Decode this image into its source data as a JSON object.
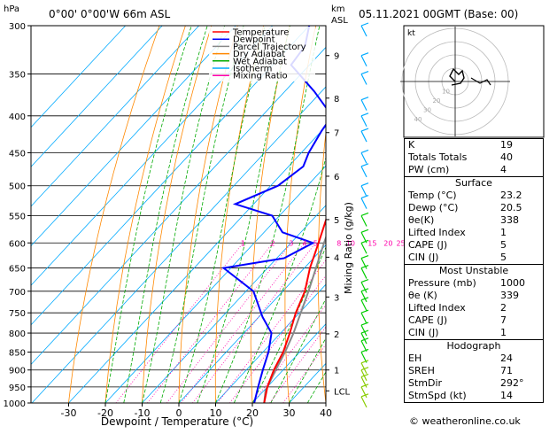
{
  "header": {
    "units_left": "hPa",
    "location": "0°00' 0°00'W 66m ASL",
    "units_km": "km",
    "units_asl": "ASL",
    "datetime": "05.11.2021 00GMT (Base: 00)"
  },
  "legend": [
    {
      "label": "Temperature",
      "color": "#ff0000"
    },
    {
      "label": "Dewpoint",
      "color": "#0000ff"
    },
    {
      "label": "Parcel Trajectory",
      "color": "#888888"
    },
    {
      "label": "Dry Adiabat",
      "color": "#ff8800"
    },
    {
      "label": "Wet Adiabat",
      "color": "#00aa00"
    },
    {
      "label": "Isotherm",
      "color": "#00aaff"
    },
    {
      "label": "Mixing Ratio",
      "color": "#ff00aa"
    }
  ],
  "chart_data": {
    "type": "skew-t",
    "xlabel": "Dewpoint / Temperature (°C)",
    "ylabel_right": "Mixing Ratio (g/kg)",
    "x_ticks": [
      "-30",
      "-20",
      "-10",
      "0",
      "10",
      "20",
      "30",
      "40"
    ],
    "pressure_ticks": [
      "300",
      "350",
      "400",
      "450",
      "500",
      "550",
      "600",
      "650",
      "700",
      "750",
      "800",
      "850",
      "900",
      "950",
      "1000"
    ],
    "km_ticks": [
      {
        "label": "9",
        "p": 330
      },
      {
        "label": "8",
        "p": 378
      },
      {
        "label": "7",
        "p": 422
      },
      {
        "label": "6",
        "p": 485
      },
      {
        "label": "5",
        "p": 557
      },
      {
        "label": "4",
        "p": 628
      },
      {
        "label": "3",
        "p": 713
      },
      {
        "label": "2",
        "p": 802
      },
      {
        "label": "1",
        "p": 900
      },
      {
        "label": "LCL",
        "p": 962
      }
    ],
    "mixing_ratio_labels": [
      "1",
      "2",
      "3",
      "4",
      "5",
      "8",
      "10",
      "15",
      "20",
      "25"
    ],
    "temperature": [
      {
        "p": 1000,
        "t": 23.2
      },
      {
        "p": 950,
        "t": 20.0
      },
      {
        "p": 900,
        "t": 17.5
      },
      {
        "p": 850,
        "t": 15.5
      },
      {
        "p": 800,
        "t": 12.5
      },
      {
        "p": 750,
        "t": 9.0
      },
      {
        "p": 700,
        "t": 6.0
      },
      {
        "p": 650,
        "t": 1.5
      },
      {
        "p": 600,
        "t": -2.5
      },
      {
        "p": 550,
        "t": -7.0
      },
      {
        "p": 500,
        "t": -12.0
      },
      {
        "p": 450,
        "t": -17.5
      },
      {
        "p": 400,
        "t": -24.0
      },
      {
        "p": 350,
        "t": -31.5
      },
      {
        "p": 300,
        "t": -40.0
      }
    ],
    "dewpoint": [
      {
        "p": 1000,
        "t": 20.5
      },
      {
        "p": 950,
        "t": 17.5
      },
      {
        "p": 900,
        "t": 14.5
      },
      {
        "p": 850,
        "t": 11.5
      },
      {
        "p": 800,
        "t": 7.5
      },
      {
        "p": 760,
        "t": 1.0
      },
      {
        "p": 700,
        "t": -8.0
      },
      {
        "p": 650,
        "t": -22.0
      },
      {
        "p": 630,
        "t": -8.0
      },
      {
        "p": 600,
        "t": -4.0
      },
      {
        "p": 580,
        "t": -15.0
      },
      {
        "p": 550,
        "t": -22.0
      },
      {
        "p": 530,
        "t": -35.0
      },
      {
        "p": 500,
        "t": -28.0
      },
      {
        "p": 470,
        "t": -26.0
      },
      {
        "p": 450,
        "t": -28.0
      },
      {
        "p": 420,
        "t": -30.0
      },
      {
        "p": 400,
        "t": -31.0
      },
      {
        "p": 370,
        "t": -42.0
      },
      {
        "p": 340,
        "t": -55.0
      },
      {
        "p": 320,
        "t": -56.0
      },
      {
        "p": 300,
        "t": -60.0
      }
    ],
    "parcel": [
      {
        "p": 1000,
        "t": 23.2
      },
      {
        "p": 962,
        "t": 20.5
      },
      {
        "p": 900,
        "t": 18.0
      },
      {
        "p": 850,
        "t": 16.0
      },
      {
        "p": 800,
        "t": 13.5
      },
      {
        "p": 700,
        "t": 7.0
      },
      {
        "p": 600,
        "t": -1.0
      },
      {
        "p": 500,
        "t": -10.0
      },
      {
        "p": 400,
        "t": -21.0
      },
      {
        "p": 300,
        "t": -36.0
      }
    ],
    "hodograph_rings": [
      "10",
      "20",
      "30",
      "40"
    ]
  },
  "hodo_label": "kt",
  "indices": [
    {
      "label": "K",
      "value": "19"
    },
    {
      "label": "Totals Totals",
      "value": "40"
    },
    {
      "label": "PW (cm)",
      "value": "4"
    }
  ],
  "surface": {
    "title": "Surface",
    "rows": [
      {
        "label": "Temp (°C)",
        "value": "23.2"
      },
      {
        "label": "Dewp (°C)",
        "value": "20.5"
      },
      {
        "label": "θe(K)",
        "value": "338"
      },
      {
        "label": "Lifted Index",
        "value": "1"
      },
      {
        "label": "CAPE (J)",
        "value": "5"
      },
      {
        "label": "CIN (J)",
        "value": "5"
      }
    ]
  },
  "unstable": {
    "title": "Most Unstable",
    "rows": [
      {
        "label": "Pressure (mb)",
        "value": "1000"
      },
      {
        "label": "θe (K)",
        "value": "339"
      },
      {
        "label": "Lifted Index",
        "value": "2"
      },
      {
        "label": "CAPE (J)",
        "value": "7"
      },
      {
        "label": "CIN (J)",
        "value": "1"
      }
    ]
  },
  "hodograph_table": {
    "title": "Hodograph",
    "rows": [
      {
        "label": "EH",
        "value": "24"
      },
      {
        "label": "SREH",
        "value": "71"
      },
      {
        "label": "StmDir",
        "value": "292°"
      },
      {
        "label": "StmSpd (kt)",
        "value": "14"
      }
    ]
  },
  "footer": "© weatheronline.co.uk"
}
